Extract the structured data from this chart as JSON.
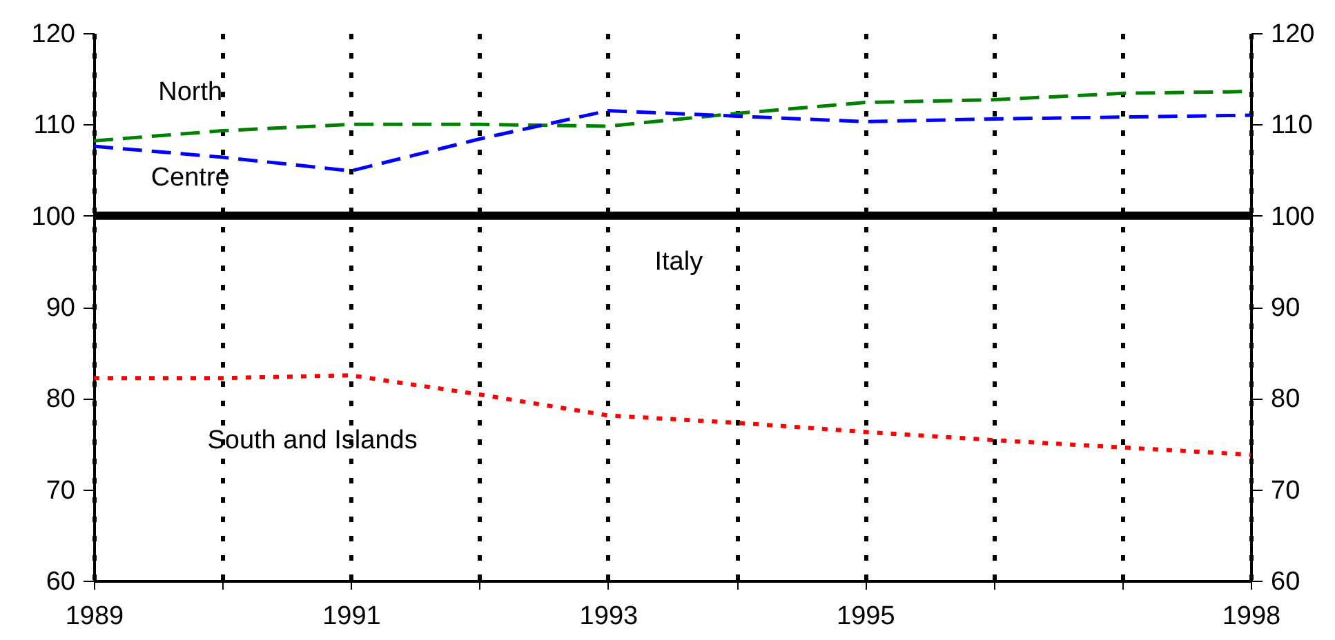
{
  "chart_data": {
    "type": "line",
    "x": [
      1989,
      1990,
      1991,
      1992,
      1993,
      1994,
      1995,
      1996,
      1997,
      1998
    ],
    "series": [
      {
        "name": "North",
        "color": "#008000",
        "line_style": "dashed",
        "values": [
          108.2,
          109.3,
          110,
          110,
          109.8,
          111.2,
          112.4,
          112.7,
          113.4,
          113.6
        ]
      },
      {
        "name": "Centre",
        "color": "#0000ff",
        "line_style": "dashed",
        "values": [
          107.6,
          106.4,
          104.9,
          108.4,
          111.5,
          110.9,
          110.3,
          110.6,
          110.8,
          111
        ]
      },
      {
        "name": "Italy",
        "color": "#000000",
        "line_style": "solid",
        "values": [
          100,
          100,
          100,
          100,
          100,
          100,
          100,
          100,
          100,
          100
        ]
      },
      {
        "name": "South and Islands",
        "color": "#ff0000",
        "line_style": "dotted",
        "values": [
          82.2,
          82.2,
          82.5,
          80.4,
          78.1,
          77.3,
          76.3,
          75.4,
          74.6,
          73.8
        ]
      }
    ],
    "xlim": [
      1989,
      1998
    ],
    "xticks": [
      1989,
      {
        "value": 1990,
        "label": null
      },
      1991,
      {
        "value": 1992,
        "label": null
      },
      1993,
      {
        "value": 1994,
        "label": null
      },
      1995,
      {
        "value": 1996,
        "label": null
      },
      {
        "value": 1997,
        "label": null
      },
      1998
    ],
    "ylim": [
      60,
      120
    ],
    "yticks": [
      60,
      70,
      80,
      90,
      100,
      110,
      120
    ],
    "y2lim": [
      60,
      120
    ],
    "y2ticks": [
      60,
      70,
      80,
      90,
      100,
      110,
      120
    ],
    "grid": "x",
    "marker": "none"
  }
}
